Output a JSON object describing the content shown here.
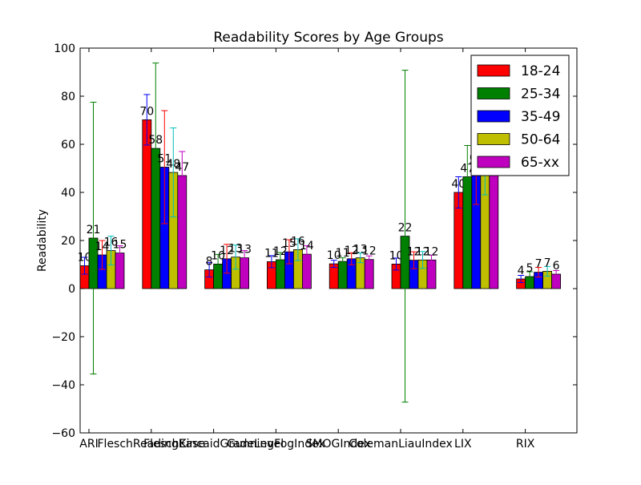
{
  "chart_data": {
    "type": "bar",
    "title": "Readability Scores by Age Groups",
    "xlabel": "",
    "ylabel": "Readability",
    "ylim": [
      -60,
      100
    ],
    "yticks": [
      -60,
      -40,
      -20,
      0,
      20,
      40,
      60,
      80,
      100
    ],
    "ytick_labels": [
      "−60",
      "−40",
      "−20",
      "0",
      "20",
      "40",
      "60",
      "80",
      "100"
    ],
    "grid": false,
    "legend_position": "top-right",
    "categories": [
      "ARI",
      "FleschReadingEase",
      "FleschKincaidGradeLevel",
      "GunningFogIndex",
      "SMOGIndex",
      "ColemanLiauIndex",
      "LIX",
      "RIX"
    ],
    "series": [
      {
        "name": "18-24",
        "color": "#ff0000",
        "errcolor": "#0000ff",
        "values": [
          9.5,
          70.2,
          7.8,
          11.2,
          10.3,
          10.2,
          40.0,
          4.0
        ],
        "errors": [
          3.5,
          10.5,
          3.0,
          2.5,
          1.5,
          2.5,
          6.5,
          1.5
        ]
      },
      {
        "name": "25-34",
        "color": "#008000",
        "errcolor": "#008000",
        "values": [
          21.0,
          58.3,
          10.2,
          12.0,
          11.3,
          21.8,
          46.5,
          5.0
        ],
        "errors": [
          56.5,
          35.5,
          4.0,
          3.0,
          1.5,
          69.0,
          13.0,
          2.0
        ]
      },
      {
        "name": "35-49",
        "color": "#0000ff",
        "errcolor": "#ff0000",
        "values": [
          14.0,
          50.5,
          12.4,
          15.3,
          12.4,
          11.8,
          50.0,
          6.8
        ],
        "errors": [
          6.0,
          23.5,
          6.0,
          5.0,
          2.5,
          3.5,
          15.0,
          2.0
        ]
      },
      {
        "name": "50-64",
        "color": "#bfbf00",
        "errcolor": "#00bfbf",
        "values": [
          15.8,
          48.3,
          13.1,
          16.2,
          12.8,
          11.9,
          52.0,
          7.2
        ],
        "errors": [
          6.0,
          18.5,
          5.0,
          4.5,
          2.0,
          3.5,
          13.0,
          2.0
        ]
      },
      {
        "name": "65-xx",
        "color": "#bf00bf",
        "errcolor": "#bf00bf",
        "values": [
          14.8,
          47.0,
          12.8,
          14.3,
          12.1,
          11.9,
          52.0,
          6.0
        ],
        "errors": [
          3.0,
          10.0,
          3.0,
          3.5,
          1.5,
          2.0,
          8.0,
          1.5
        ]
      }
    ]
  }
}
